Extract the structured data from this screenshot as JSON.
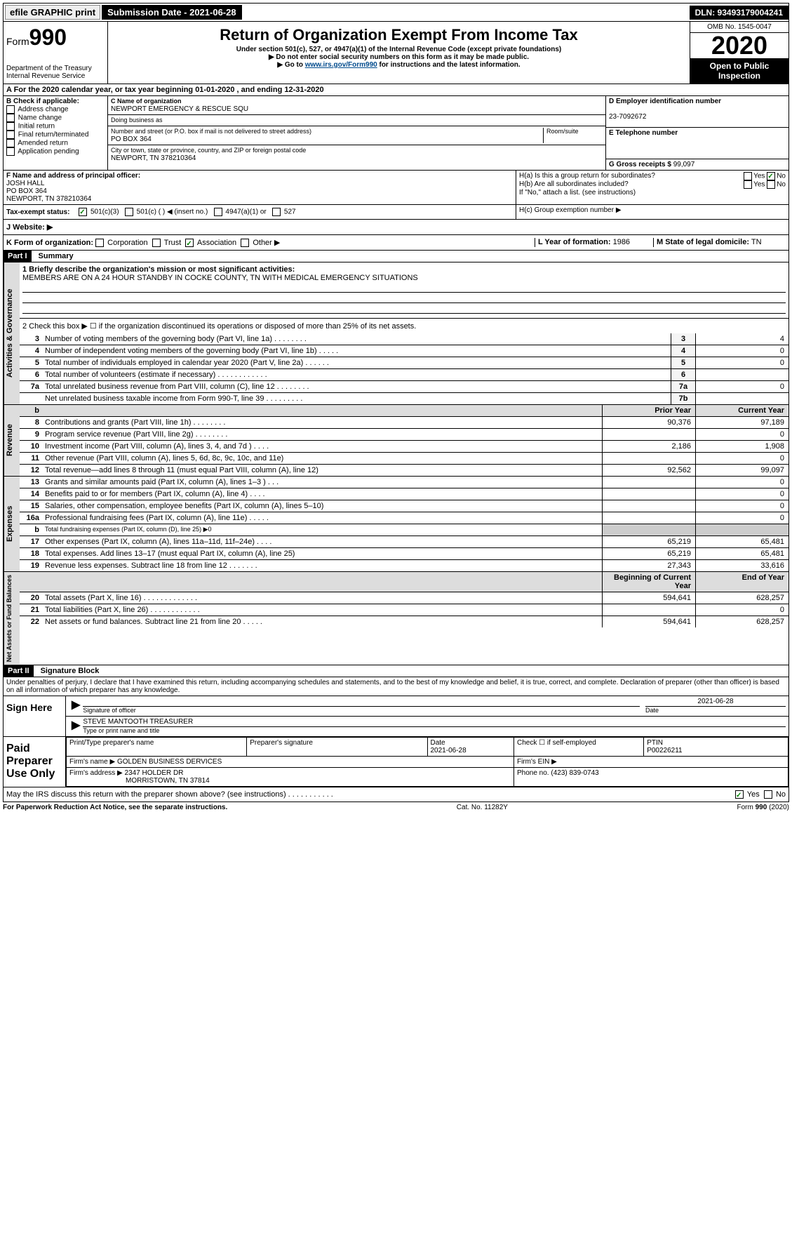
{
  "topbar": {
    "efile": "efile GRAPHIC print",
    "submission": "Submission Date - 2021-06-28",
    "dln": "DLN: 93493179004241"
  },
  "header": {
    "form_label": "Form",
    "form_number": "990",
    "title": "Return of Organization Exempt From Income Tax",
    "subtitle": "Under section 501(c), 527, or 4947(a)(1) of the Internal Revenue Code (except private foundations)",
    "note1": "▶ Do not enter social security numbers on this form as it may be made public.",
    "note2_pre": "▶ Go to ",
    "note2_link": "www.irs.gov/Form990",
    "note2_post": " for instructions and the latest information.",
    "dept": "Department of the Treasury\nInternal Revenue Service",
    "omb": "OMB No. 1545-0047",
    "year": "2020",
    "open": "Open to Public Inspection"
  },
  "lineA": "A For the 2020 calendar year, or tax year beginning 01-01-2020     , and ending 12-31-2020",
  "boxB": {
    "label": "B Check if applicable:",
    "items": [
      "Address change",
      "Name change",
      "Initial return",
      "Final return/terminated",
      "Amended return",
      "Application pending"
    ]
  },
  "boxC": {
    "name_label": "C Name of organization",
    "name": "NEWPORT EMERGENCY & RESCUE SQU",
    "dba_label": "Doing business as",
    "addr_label": "Number and street (or P.O. box if mail is not delivered to street address)",
    "room_label": "Room/suite",
    "addr": "PO BOX 364",
    "city_label": "City or town, state or province, country, and ZIP or foreign postal code",
    "city": "NEWPORT, TN  378210364"
  },
  "boxD": {
    "label": "D Employer identification number",
    "value": "23-7092672"
  },
  "boxE": {
    "label": "E Telephone number",
    "value": ""
  },
  "boxG": {
    "label": "G Gross receipts $",
    "value": "99,097"
  },
  "boxF": {
    "label": "F  Name and address of principal officer:",
    "name": "JOSH HALL",
    "addr1": "PO BOX 364",
    "addr2": "NEWPORT, TN  378210364"
  },
  "boxH": {
    "ha": "H(a)  Is this a group return for subordinates?",
    "hb": "H(b)  Are all subordinates included?",
    "hb_note": "If \"No,\" attach a list. (see instructions)",
    "hc": "H(c)  Group exemption number ▶",
    "yes": "Yes",
    "no": "No"
  },
  "lineI": {
    "label": "Tax-exempt status:",
    "opts": [
      "501(c)(3)",
      "501(c) (   )  ◀ (insert no.)",
      "4947(a)(1) or",
      "527"
    ]
  },
  "lineJ": {
    "label": "J     Website: ▶",
    "value": ""
  },
  "lineK": {
    "label": "K Form of organization:",
    "opts": [
      "Corporation",
      "Trust",
      "Association",
      "Other ▶"
    ],
    "l_label": "L Year of formation:",
    "l_value": "1986",
    "m_label": "M State of legal domicile:",
    "m_value": "TN"
  },
  "part1": {
    "title": "Part I",
    "subtitle": "Summary"
  },
  "summary": {
    "q1_label": "1  Briefly describe the organization's mission or most significant activities:",
    "q1_text": "MEMBERS ARE ON A 24 HOUR STANDBY IN COCKE COUNTY, TN WITH MEDICAL EMERGENCY SITUATIONS",
    "q2": "2   Check this box ▶ ☐  if the organization discontinued its operations or disposed of more than 25% of its net assets.",
    "lines_single": [
      {
        "n": "3",
        "d": "Number of voting members of the governing body (Part VI, line 1a)  .    .    .    .    .    .    .    .",
        "box": "3",
        "v": "4"
      },
      {
        "n": "4",
        "d": "Number of independent voting members of the governing body (Part VI, line 1b)  .    .    .    .    .",
        "box": "4",
        "v": "0"
      },
      {
        "n": "5",
        "d": "Total number of individuals employed in calendar year 2020 (Part V, line 2a)  .    .    .    .    .    .",
        "box": "5",
        "v": "0"
      },
      {
        "n": "6",
        "d": "Total number of volunteers (estimate if necessary)  .    .    .    .    .    .    .    .    .    .    .    .",
        "box": "6",
        "v": ""
      },
      {
        "n": "7a",
        "d": "Total unrelated business revenue from Part VIII, column (C), line 12  .    .    .    .    .    .    .    .",
        "box": "7a",
        "v": "0"
      },
      {
        "n": "",
        "d": "Net unrelated business taxable income from Form 990-T, line 39  .    .    .    .    .    .    .    .    .",
        "box": "7b",
        "v": ""
      }
    ],
    "col_headers": {
      "prior": "Prior Year",
      "current": "Current Year",
      "beg": "Beginning of Current Year",
      "end": "End of Year"
    },
    "revenue": [
      {
        "n": "8",
        "d": "Contributions and grants (Part VIII, line 1h)  .    .    .    .    .    .    .    .",
        "p": "90,376",
        "c": "97,189"
      },
      {
        "n": "9",
        "d": "Program service revenue (Part VIII, line 2g)  .    .    .    .    .    .    .    .",
        "p": "",
        "c": "0"
      },
      {
        "n": "10",
        "d": "Investment income (Part VIII, column (A), lines 3, 4, and 7d )  .    .    .    .",
        "p": "2,186",
        "c": "1,908"
      },
      {
        "n": "11",
        "d": "Other revenue (Part VIII, column (A), lines 5, 6d, 8c, 9c, 10c, and 11e)",
        "p": "",
        "c": "0"
      },
      {
        "n": "12",
        "d": "Total revenue—add lines 8 through 11 (must equal Part VIII, column (A), line 12)",
        "p": "92,562",
        "c": "99,097"
      }
    ],
    "expenses": [
      {
        "n": "13",
        "d": "Grants and similar amounts paid (Part IX, column (A), lines 1–3 )  .    .    .",
        "p": "",
        "c": "0"
      },
      {
        "n": "14",
        "d": "Benefits paid to or for members (Part IX, column (A), line 4)  .    .    .    .",
        "p": "",
        "c": "0"
      },
      {
        "n": "15",
        "d": "Salaries, other compensation, employee benefits (Part IX, column (A), lines 5–10)",
        "p": "",
        "c": "0"
      },
      {
        "n": "16a",
        "d": "Professional fundraising fees (Part IX, column (A), line 11e)  .    .    .    .    .",
        "p": "",
        "c": "0"
      },
      {
        "n": "b",
        "d": "Total fundraising expenses (Part IX, column (D), line 25) ▶0",
        "p": "-",
        "c": "-"
      },
      {
        "n": "17",
        "d": "Other expenses (Part IX, column (A), lines 11a–11d, 11f–24e)  .    .    .    .",
        "p": "65,219",
        "c": "65,481"
      },
      {
        "n": "18",
        "d": "Total expenses. Add lines 13–17 (must equal Part IX, column (A), line 25)",
        "p": "65,219",
        "c": "65,481"
      },
      {
        "n": "19",
        "d": "Revenue less expenses. Subtract line 18 from line 12  .    .    .    .    .    .    .",
        "p": "27,343",
        "c": "33,616"
      }
    ],
    "netassets": [
      {
        "n": "20",
        "d": "Total assets (Part X, line 16)  .    .    .    .    .    .    .    .    .    .    .    .    .",
        "p": "594,641",
        "c": "628,257"
      },
      {
        "n": "21",
        "d": "Total liabilities (Part X, line 26)  .    .    .    .    .    .    .    .    .    .    .    .",
        "p": "",
        "c": "0"
      },
      {
        "n": "22",
        "d": "Net assets or fund balances. Subtract line 21 from line 20  .    .    .    .    .",
        "p": "594,641",
        "c": "628,257"
      }
    ]
  },
  "vert_labels": {
    "gov": "Activities & Governance",
    "rev": "Revenue",
    "exp": "Expenses",
    "net": "Net Assets or Fund Balances"
  },
  "part2": {
    "title": "Part II",
    "subtitle": "Signature Block",
    "perjury": "Under penalties of perjury, I declare that I have examined this return, including accompanying schedules and statements, and to the best of my knowledge and belief, it is true, correct, and complete. Declaration of preparer (other than officer) is based on all information of which preparer has any knowledge."
  },
  "sign": {
    "here": "Sign Here",
    "sig_label": "Signature of officer",
    "date": "2021-06-28",
    "date_label": "Date",
    "name": "STEVE MANTOOTH  TREASURER",
    "name_label": "Type or print name and title"
  },
  "paid": {
    "label": "Paid Preparer Use Only",
    "h1": "Print/Type preparer's name",
    "h2": "Preparer's signature",
    "h3": "Date",
    "h3v": "2021-06-28",
    "h4": "Check ☐ if self-employed",
    "h5": "PTIN",
    "h5v": "P00226211",
    "firm_label": "Firm's name     ▶",
    "firm": "GOLDEN BUSINESS DERVICES",
    "ein_label": "Firm's EIN ▶",
    "addr_label": "Firm's address ▶",
    "addr1": "2347 HOLDER DR",
    "addr2": "MORRISTOWN, TN   37814",
    "phone_label": "Phone no.",
    "phone": "(423) 839-0743"
  },
  "discuss": {
    "q": "May the IRS discuss this return with the preparer shown above? (see instructions)   .    .    .    .    .    .    .    .    .    .    .",
    "yes": "Yes",
    "no": "No"
  },
  "footer": {
    "left": "For Paperwork Reduction Act Notice, see the separate instructions.",
    "mid": "Cat. No. 11282Y",
    "right": "Form 990 (2020)"
  }
}
